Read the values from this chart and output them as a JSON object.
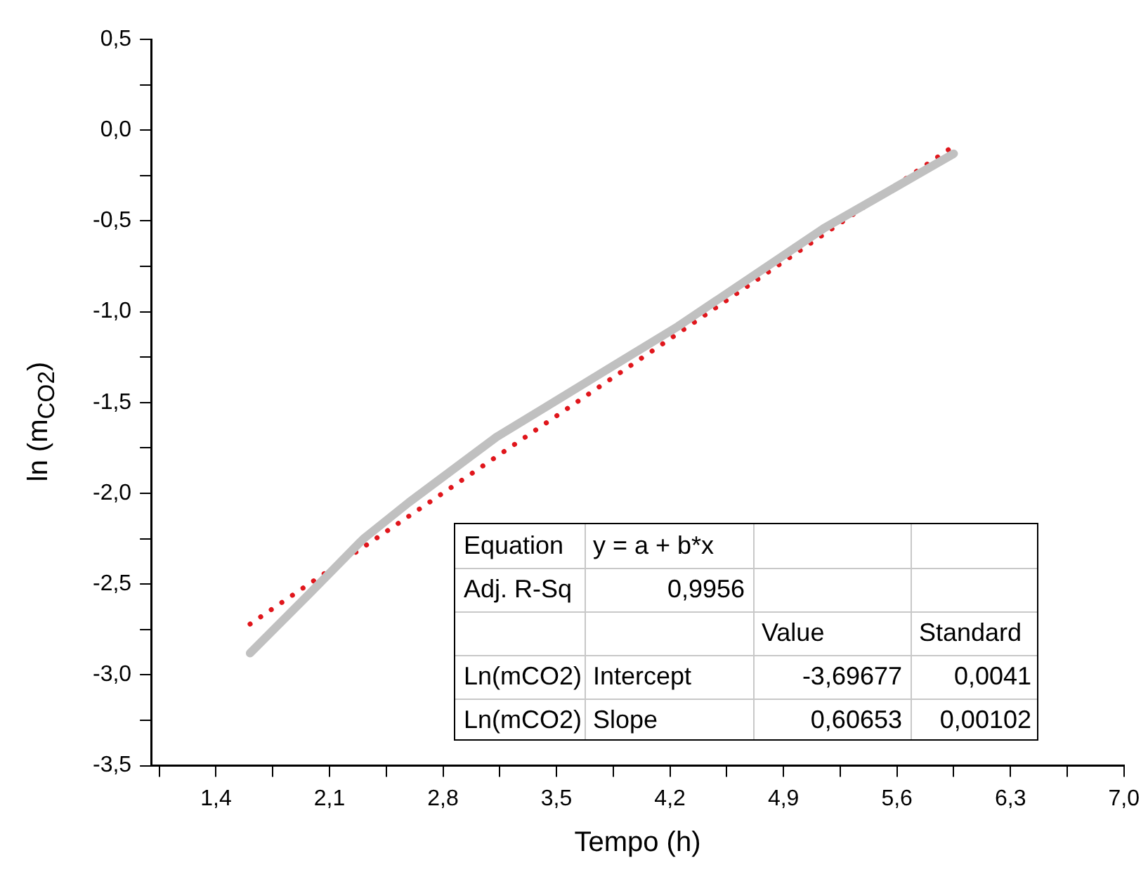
{
  "chart_data": {
    "type": "line",
    "xlabel": "Tempo (h)",
    "ylabel": "ln (m$_{CO2}$)",
    "xlim": [
      1.0,
      7.0
    ],
    "ylim": [
      -3.5,
      0.5
    ],
    "xticks": [
      {
        "value": 1.05,
        "label": null
      },
      {
        "value": 1.4,
        "label": "1,4"
      },
      {
        "value": 1.75,
        "label": null
      },
      {
        "value": 2.1,
        "label": "2,1"
      },
      {
        "value": 2.45,
        "label": null
      },
      {
        "value": 2.8,
        "label": "2,8"
      },
      {
        "value": 3.15,
        "label": null
      },
      {
        "value": 3.5,
        "label": "3,5"
      },
      {
        "value": 3.85,
        "label": null
      },
      {
        "value": 4.2,
        "label": "4,2"
      },
      {
        "value": 4.55,
        "label": null
      },
      {
        "value": 4.9,
        "label": "4,9"
      },
      {
        "value": 5.25,
        "label": null
      },
      {
        "value": 5.6,
        "label": "5,6"
      },
      {
        "value": 5.95,
        "label": null
      },
      {
        "value": 6.3,
        "label": "6,3"
      },
      {
        "value": 6.65,
        "label": null
      },
      {
        "value": 7.0,
        "label": "7,0"
      }
    ],
    "yticks": [
      {
        "value": -3.5,
        "label": "-3,5"
      },
      {
        "value": -3.25,
        "label": null
      },
      {
        "value": -3.0,
        "label": "-3,0"
      },
      {
        "value": -2.75,
        "label": null
      },
      {
        "value": -2.5,
        "label": "-2,5"
      },
      {
        "value": -2.25,
        "label": null
      },
      {
        "value": -2.0,
        "label": "-2,0"
      },
      {
        "value": -1.75,
        "label": null
      },
      {
        "value": -1.5,
        "label": "-1,5"
      },
      {
        "value": -1.25,
        "label": null
      },
      {
        "value": -1.0,
        "label": "-1,0"
      },
      {
        "value": -0.75,
        "label": null
      },
      {
        "value": -0.5,
        "label": "-0,5"
      },
      {
        "value": -0.25,
        "label": null
      },
      {
        "value": 0.0,
        "label": "0,0"
      },
      {
        "value": 0.25,
        "label": null
      },
      {
        "value": 0.5,
        "label": "0,5"
      }
    ],
    "marker": "none",
    "legend": false,
    "series": [
      {
        "type": "line",
        "color": "#c0c0c0",
        "line_style": "solid",
        "x": [
          1.61,
          1.98,
          2.31,
          2.59,
          3.13,
          4.25,
          5.15,
          5.95
        ],
        "values": [
          -2.88,
          -2.55,
          -2.25,
          -2.05,
          -1.69,
          -1.08,
          -0.54,
          -0.13
        ]
      },
      {
        "type": "line",
        "color": "#e0161c",
        "line_style": "dotted",
        "x": [
          1.61,
          5.95
        ],
        "values": [
          -2.72,
          -0.088
        ]
      }
    ],
    "annotations": [
      "Equation",
      "y = a + b*x",
      "Adj. R-Sq",
      "0,9956",
      "Value",
      "Standard",
      "Ln(mCO2)",
      "Intercept",
      "-3,69677",
      "0,0041",
      "Ln(mCO2)",
      "Slope",
      "0,60653",
      "0,00102"
    ]
  }
}
